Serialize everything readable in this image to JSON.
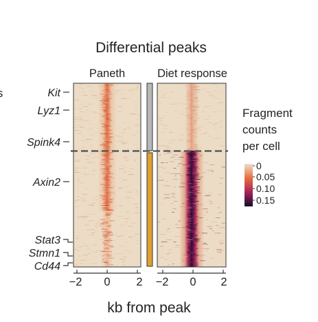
{
  "chart_data": {
    "type": "heatmap",
    "title": "Differential peaks",
    "xlabel": "kb from peak",
    "panels": [
      {
        "title": "Paneth",
        "x_ticks": [
          -2,
          0,
          2
        ]
      },
      {
        "title": "Diet response",
        "x_ticks": [
          -2,
          0,
          2
        ]
      }
    ],
    "x_range_kb": [
      -2,
      2
    ],
    "row_labels": [
      "Kit",
      "Lyz1",
      "Spink4",
      "Axin2",
      "Stat3",
      "Stmn1",
      "Cd44"
    ],
    "row_groups": [
      {
        "name": "",
        "color": "#b8b8b8"
      },
      {
        "name": "",
        "color": "#e0a030"
      }
    ],
    "legend": {
      "title_lines": [
        "Fragment",
        "counts",
        "per cell"
      ],
      "ticks": [
        "0",
        "0.05",
        "0.10",
        "0.15"
      ],
      "colors": [
        "#ede0cc",
        "#e8703f",
        "#a8245a",
        "#160b2c"
      ]
    },
    "cropped_left_text": "s"
  }
}
